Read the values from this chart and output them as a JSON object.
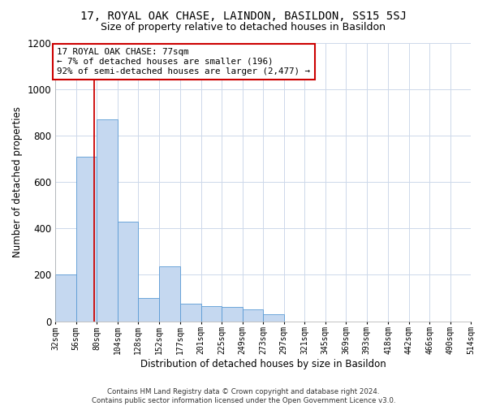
{
  "title": "17, ROYAL OAK CHASE, LAINDON, BASILDON, SS15 5SJ",
  "subtitle": "Size of property relative to detached houses in Basildon",
  "xlabel": "Distribution of detached houses by size in Basildon",
  "ylabel": "Number of detached properties",
  "footer_line1": "Contains HM Land Registry data © Crown copyright and database right 2024.",
  "footer_line2": "Contains public sector information licensed under the Open Government Licence v3.0.",
  "annotation_title": "17 ROYAL OAK CHASE: 77sqm",
  "annotation_line1": "← 7% of detached houses are smaller (196)",
  "annotation_line2": "92% of semi-detached houses are larger (2,477) →",
  "property_size": 77,
  "bar_color": "#c5d8f0",
  "bar_edge_color": "#5b9bd5",
  "marker_color": "#cc0000",
  "background_color": "#ffffff",
  "grid_color": "#cdd8ea",
  "annotation_box_color": "#ffffff",
  "annotation_border_color": "#cc0000",
  "bins": [
    32,
    56,
    80,
    104,
    128,
    152,
    177,
    201,
    225,
    249,
    273,
    297,
    321,
    345,
    369,
    393,
    418,
    442,
    466,
    490,
    514
  ],
  "counts": [
    200,
    710,
    870,
    430,
    100,
    235,
    75,
    65,
    60,
    50,
    30,
    0,
    0,
    0,
    0,
    0,
    0,
    0,
    0,
    0
  ],
  "ylim": [
    0,
    1200
  ],
  "yticks": [
    0,
    200,
    400,
    600,
    800,
    1000,
    1200
  ]
}
